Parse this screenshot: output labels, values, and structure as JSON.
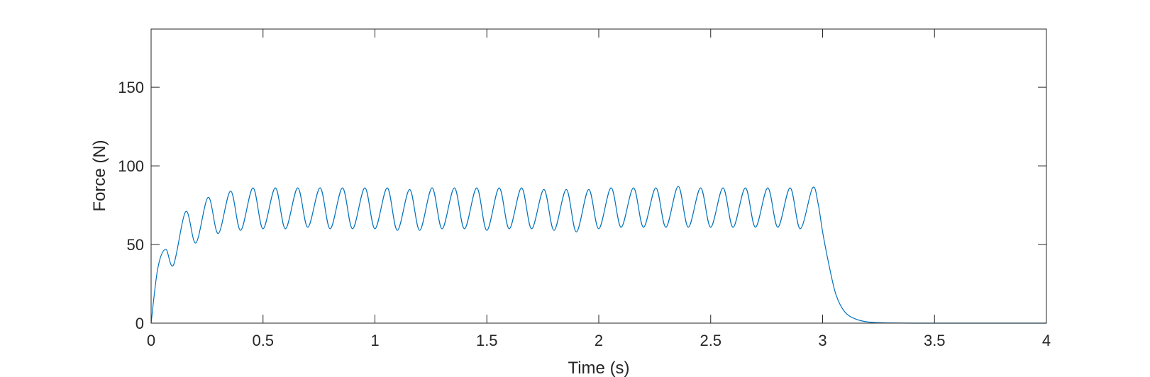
{
  "chart_data": {
    "type": "line",
    "title": "",
    "xlabel": "Time (s)",
    "ylabel": "Force (N)",
    "xlim": [
      0,
      4
    ],
    "ylim": [
      0,
      187
    ],
    "xticks": [
      0,
      0.5,
      1,
      1.5,
      2,
      2.5,
      3,
      3.5,
      4
    ],
    "xtick_labels": [
      "0",
      "0.5",
      "1",
      "1.5",
      "2",
      "2.5",
      "3",
      "3.5",
      "4"
    ],
    "yticks": [
      0,
      50,
      100,
      150
    ],
    "ytick_labels": [
      "0",
      "50",
      "100",
      "150"
    ],
    "grid": false,
    "legend": "none",
    "line_color": "#0072BD",
    "series": [
      {
        "x": [
          0,
          0.03,
          0.065,
          0.1,
          0.155,
          0.2,
          0.255,
          0.3,
          0.355,
          0.4,
          0.455,
          0.5,
          0.555,
          0.6,
          0.655,
          0.7,
          0.755,
          0.8,
          0.855,
          0.9,
          0.955,
          1.0,
          1.055,
          1.1,
          1.155,
          1.2,
          1.255,
          1.3,
          1.355,
          1.4,
          1.455,
          1.5,
          1.555,
          1.6,
          1.655,
          1.7,
          1.755,
          1.8,
          1.855,
          1.9,
          1.955,
          2.0,
          2.055,
          2.1,
          2.155,
          2.2,
          2.255,
          2.3,
          2.355,
          2.4,
          2.455,
          2.5,
          2.555,
          2.6,
          2.655,
          2.7,
          2.755,
          2.8,
          2.855,
          2.9,
          2.955,
          2.98,
          3.0,
          3.03,
          3.06,
          3.1,
          3.15,
          3.2,
          3.25,
          3.3,
          3.4,
          3.6,
          4.0
        ],
        "y": [
          0,
          35,
          47,
          37,
          71,
          51,
          80,
          57,
          84,
          59,
          86,
          60,
          86,
          60,
          86,
          61,
          86,
          60,
          86,
          60,
          86,
          60,
          86,
          59,
          85,
          59,
          86,
          60,
          86,
          60,
          86,
          59,
          86,
          60,
          86,
          60,
          85,
          59,
          85,
          58,
          85,
          60,
          86,
          61,
          86,
          61,
          86,
          61,
          87,
          61,
          86,
          61,
          86,
          61,
          86,
          61,
          86,
          61,
          86,
          60,
          86,
          76,
          58,
          36,
          18,
          7,
          2.5,
          0.8,
          0.3,
          0.1,
          0,
          0,
          0
        ]
      }
    ]
  }
}
